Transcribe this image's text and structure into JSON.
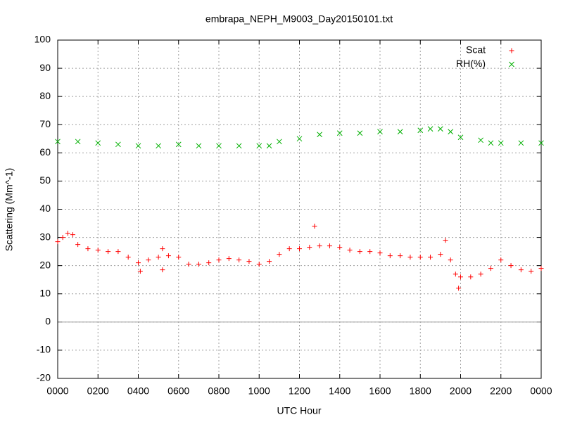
{
  "chart_data": {
    "type": "scatter",
    "title": "embrapa_NEPH_M9003_Day20150101.txt",
    "xlabel": "UTC Hour",
    "ylabel": "Scattering (Mm^-1)",
    "xlim": [
      0,
      24
    ],
    "ylim": [
      -20,
      100
    ],
    "xticks": [
      {
        "value": 0,
        "label": "0000"
      },
      {
        "value": 2,
        "label": "0200"
      },
      {
        "value": 4,
        "label": "0400"
      },
      {
        "value": 6,
        "label": "0600"
      },
      {
        "value": 8,
        "label": "0800"
      },
      {
        "value": 10,
        "label": "1000"
      },
      {
        "value": 12,
        "label": "1200"
      },
      {
        "value": 14,
        "label": "1400"
      },
      {
        "value": 16,
        "label": "1600"
      },
      {
        "value": 18,
        "label": "1800"
      },
      {
        "value": 20,
        "label": "2000"
      },
      {
        "value": 22,
        "label": "2200"
      },
      {
        "value": 24,
        "label": "0000"
      }
    ],
    "yticks": [
      -20,
      -10,
      0,
      10,
      20,
      30,
      40,
      50,
      60,
      70,
      80,
      90,
      100
    ],
    "grid": true,
    "zeroaxis": true,
    "legend": "top-right",
    "series": [
      {
        "name": "Scat",
        "color": "#ff0000",
        "marker": "plus",
        "x": [
          0,
          0.25,
          0.5,
          0.75,
          1,
          1.5,
          2,
          2.5,
          3,
          3.5,
          4,
          4.1,
          4.5,
          5,
          5.2,
          5.2,
          5.5,
          6,
          6.5,
          7,
          7.5,
          8,
          8.5,
          9,
          9.5,
          10,
          10.5,
          11,
          11.5,
          12,
          12.5,
          12.75,
          13,
          13.5,
          14,
          14.5,
          15,
          15.5,
          16,
          16.5,
          17,
          17.5,
          18,
          18.5,
          19,
          19.25,
          19.5,
          19.75,
          19.9,
          20,
          20.5,
          21,
          21.5,
          22,
          22.5,
          23,
          23.5,
          24
        ],
        "values": [
          28.5,
          30,
          31.5,
          31,
          27.5,
          26,
          25.5,
          25,
          25,
          23,
          21,
          18,
          22,
          23,
          18.5,
          26,
          23.5,
          23,
          20.5,
          20.5,
          21,
          22,
          22.5,
          22,
          21.5,
          20.5,
          21.5,
          24,
          26,
          26,
          26.5,
          34,
          27,
          27,
          26.5,
          25.5,
          25,
          25,
          24.5,
          23.5,
          23.5,
          23,
          23,
          23,
          24,
          29,
          22,
          17,
          12,
          16,
          16,
          17,
          19,
          22,
          20,
          18.5,
          18,
          19
        ]
      },
      {
        "name": "RH(%)",
        "color": "#00b000",
        "marker": "cross",
        "x": [
          0,
          1,
          2,
          3,
          4,
          5,
          6,
          7,
          8,
          9,
          10,
          10.5,
          11,
          12,
          13,
          14,
          15,
          16,
          17,
          18,
          18.5,
          19,
          19.5,
          20,
          21,
          21.5,
          22,
          23,
          24
        ],
        "values": [
          64,
          64,
          63.5,
          63,
          62.5,
          62.5,
          63,
          62.5,
          62.5,
          62.5,
          62.5,
          62.5,
          64,
          65,
          66.5,
          67,
          67,
          67.5,
          67.5,
          68,
          68.5,
          68.5,
          67.5,
          65.5,
          64.5,
          63.5,
          63.5,
          63.5,
          63.5
        ]
      }
    ]
  }
}
